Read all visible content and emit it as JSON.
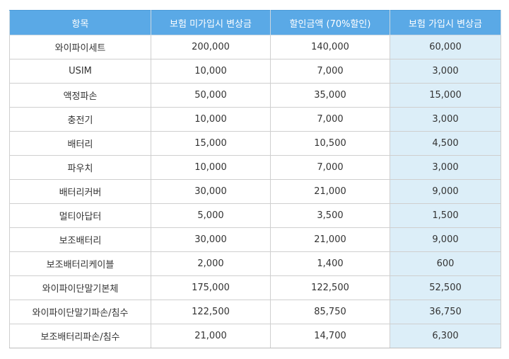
{
  "table": {
    "headers": [
      "항목",
      "보험 미가입시 변상금",
      "할인금액 (70%할인)",
      "보험 가입시 변상금"
    ],
    "rows": [
      [
        "와이파이세트",
        "200,000",
        "140,000",
        "60,000"
      ],
      [
        "USIM",
        "10,000",
        "7,000",
        "3,000"
      ],
      [
        "액정파손",
        "50,000",
        "35,000",
        "15,000"
      ],
      [
        "충전기",
        "10,000",
        "7,000",
        "3,000"
      ],
      [
        "배터리",
        "15,000",
        "10,500",
        "4,500"
      ],
      [
        "파우치",
        "10,000",
        "7,000",
        "3,000"
      ],
      [
        "배터리커버",
        "30,000",
        "21,000",
        "9,000"
      ],
      [
        "멀티아답터",
        "5,000",
        "3,500",
        "1,500"
      ],
      [
        "보조배터리",
        "30,000",
        "21,000",
        "9,000"
      ],
      [
        "보조배터리케이블",
        "2,000",
        "1,400",
        "600"
      ],
      [
        "와이파이단말기본체",
        "175,000",
        "122,500",
        "52,500"
      ],
      [
        "와이파이단말기파손/침수",
        "122,500",
        "85,750",
        "36,750"
      ],
      [
        "보조배터리파손/침수",
        "21,000",
        "14,700",
        "6,300"
      ]
    ]
  },
  "colors": {
    "header_bg": "#5aa9e6",
    "header_text": "#ffffff",
    "highlight_col_bg": "#dceef8",
    "border": "#cfcfcf"
  }
}
